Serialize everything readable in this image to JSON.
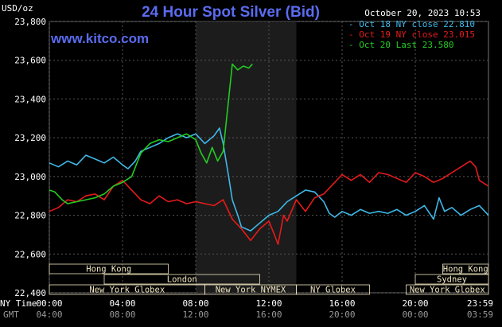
{
  "header": {
    "title": "24 Hour Spot Silver (Bid)",
    "timestamp": "October 20, 2023 10:53",
    "units": "USD/oz",
    "website": "www.kitco.com"
  },
  "legend": [
    {
      "label": "Oct 18 NY close 22.810",
      "color": "#3fb8e8"
    },
    {
      "label": "Oct 19 NY close 23.015",
      "color": "#e51b1b"
    },
    {
      "label": "Oct 20 Last 23.580",
      "color": "#22cc22"
    }
  ],
  "axis_labels": {
    "ny_time": "NY Time",
    "gmt": "GMT"
  },
  "markets": [
    {
      "name": "Hong Kong",
      "start_h": 0,
      "end_h": 6.5,
      "row": 0
    },
    {
      "name": "Hong Kong",
      "start_h": 21.5,
      "end_h": 24,
      "row": 0
    },
    {
      "name": "London",
      "start_h": 3,
      "end_h": 11.5,
      "row": 1
    },
    {
      "name": "Sydney",
      "start_h": 20,
      "end_h": 24,
      "row": 2
    },
    {
      "name": "New York Globex",
      "start_h": 0,
      "end_h": 8.5,
      "row": 3
    },
    {
      "name": "New York NYMEX",
      "start_h": 8.5,
      "end_h": 13.5,
      "row": 3
    },
    {
      "name": "NY Globex",
      "start_h": 13.5,
      "end_h": 17.5,
      "row": 3
    },
    {
      "name": "New York Globex",
      "start_h": 19.5,
      "end_h": 24,
      "row": 3
    }
  ],
  "chart_data": {
    "type": "line",
    "x_unit": "hours NY time",
    "xlim": [
      0,
      24
    ],
    "ylim": [
      22.4,
      23.8
    ],
    "x_ticks": [
      "00:00",
      "04:00",
      "08:00",
      "12:00",
      "16:00",
      "20:00",
      "23:59"
    ],
    "x_ticks_gmt": [
      "04:00",
      "08:00",
      "12:00",
      "16:00",
      "20:00",
      "00:00",
      "03:59"
    ],
    "y_ticks": [
      "22,400",
      "22,600",
      "22,800",
      "23,000",
      "23,200",
      "23,400",
      "23,600",
      "23,800"
    ],
    "y_tick_values": [
      22.4,
      22.6,
      22.8,
      23.0,
      23.2,
      23.4,
      23.6,
      23.8
    ],
    "shaded_region_hours": [
      8.0,
      13.5
    ],
    "grid": true,
    "series": [
      {
        "name": "Oct 18",
        "color": "#3fb8e8",
        "points": [
          [
            0,
            23.07
          ],
          [
            0.5,
            23.05
          ],
          [
            1.0,
            23.08
          ],
          [
            1.5,
            23.06
          ],
          [
            2.0,
            23.11
          ],
          [
            2.5,
            23.09
          ],
          [
            3.0,
            23.07
          ],
          [
            3.5,
            23.1
          ],
          [
            4.0,
            23.06
          ],
          [
            4.3,
            23.04
          ],
          [
            4.7,
            23.08
          ],
          [
            5.0,
            23.13
          ],
          [
            5.5,
            23.15
          ],
          [
            6.0,
            23.17
          ],
          [
            6.5,
            23.2
          ],
          [
            7.0,
            23.22
          ],
          [
            7.5,
            23.2
          ],
          [
            8.0,
            23.22
          ],
          [
            8.5,
            23.17
          ],
          [
            9.0,
            23.21
          ],
          [
            9.3,
            23.25
          ],
          [
            9.5,
            23.17
          ],
          [
            9.8,
            23.0
          ],
          [
            10.0,
            22.88
          ],
          [
            10.3,
            22.8
          ],
          [
            10.5,
            22.74
          ],
          [
            11.0,
            22.72
          ],
          [
            11.5,
            22.76
          ],
          [
            12.0,
            22.8
          ],
          [
            12.5,
            22.82
          ],
          [
            13.0,
            22.87
          ],
          [
            13.5,
            22.9
          ],
          [
            14.0,
            22.93
          ],
          [
            14.5,
            22.92
          ],
          [
            15.0,
            22.87
          ],
          [
            15.3,
            22.81
          ],
          [
            15.6,
            22.79
          ],
          [
            16.0,
            22.82
          ],
          [
            16.5,
            22.8
          ],
          [
            17.0,
            22.83
          ],
          [
            17.5,
            22.81
          ],
          [
            18.0,
            22.82
          ],
          [
            18.5,
            22.81
          ],
          [
            19.0,
            22.83
          ],
          [
            19.5,
            22.8
          ],
          [
            20.0,
            22.82
          ],
          [
            20.5,
            22.85
          ],
          [
            21.0,
            22.78
          ],
          [
            21.3,
            22.89
          ],
          [
            21.6,
            22.82
          ],
          [
            22.0,
            22.84
          ],
          [
            22.5,
            22.8
          ],
          [
            23.0,
            22.83
          ],
          [
            23.5,
            22.85
          ],
          [
            24.0,
            22.8
          ]
        ]
      },
      {
        "name": "Oct 19",
        "color": "#e51b1b",
        "points": [
          [
            0,
            22.82
          ],
          [
            0.5,
            22.84
          ],
          [
            1.0,
            22.88
          ],
          [
            1.5,
            22.87
          ],
          [
            2.0,
            22.9
          ],
          [
            2.5,
            22.91
          ],
          [
            3.0,
            22.88
          ],
          [
            3.5,
            22.95
          ],
          [
            4.0,
            22.98
          ],
          [
            4.5,
            22.93
          ],
          [
            5.0,
            22.88
          ],
          [
            5.5,
            22.86
          ],
          [
            6.0,
            22.9
          ],
          [
            6.5,
            22.87
          ],
          [
            7.0,
            22.88
          ],
          [
            7.5,
            22.86
          ],
          [
            8.0,
            22.87
          ],
          [
            8.5,
            22.86
          ],
          [
            9.0,
            22.85
          ],
          [
            9.5,
            22.88
          ],
          [
            10.0,
            22.78
          ],
          [
            10.5,
            22.73
          ],
          [
            11.0,
            22.67
          ],
          [
            11.5,
            22.73
          ],
          [
            12.0,
            22.77
          ],
          [
            12.3,
            22.7
          ],
          [
            12.5,
            22.65
          ],
          [
            12.8,
            22.8
          ],
          [
            13.0,
            22.77
          ],
          [
            13.5,
            22.88
          ],
          [
            14.0,
            22.82
          ],
          [
            14.5,
            22.89
          ],
          [
            15.0,
            22.91
          ],
          [
            15.5,
            22.96
          ],
          [
            16.0,
            23.01
          ],
          [
            16.5,
            22.98
          ],
          [
            17.0,
            23.01
          ],
          [
            17.5,
            22.97
          ],
          [
            18.0,
            23.02
          ],
          [
            18.5,
            23.01
          ],
          [
            19.0,
            22.99
          ],
          [
            19.5,
            22.97
          ],
          [
            20.0,
            23.02
          ],
          [
            20.5,
            23.0
          ],
          [
            21.0,
            22.97
          ],
          [
            21.5,
            22.99
          ],
          [
            22.0,
            23.02
          ],
          [
            22.5,
            23.05
          ],
          [
            23.0,
            23.08
          ],
          [
            23.3,
            23.05
          ],
          [
            23.5,
            22.98
          ],
          [
            24.0,
            22.95
          ]
        ]
      },
      {
        "name": "Oct 20",
        "color": "#22cc22",
        "points": [
          [
            0,
            22.93
          ],
          [
            0.3,
            22.92
          ],
          [
            0.7,
            22.88
          ],
          [
            1.0,
            22.86
          ],
          [
            1.5,
            22.87
          ],
          [
            2.0,
            22.88
          ],
          [
            2.5,
            22.89
          ],
          [
            3.0,
            22.91
          ],
          [
            3.5,
            22.95
          ],
          [
            4.0,
            22.97
          ],
          [
            4.5,
            23.0
          ],
          [
            5.0,
            23.12
          ],
          [
            5.5,
            23.17
          ],
          [
            6.0,
            23.19
          ],
          [
            6.5,
            23.18
          ],
          [
            7.0,
            23.2
          ],
          [
            7.5,
            23.22
          ],
          [
            8.0,
            23.19
          ],
          [
            8.3,
            23.12
          ],
          [
            8.6,
            23.07
          ],
          [
            8.9,
            23.15
          ],
          [
            9.2,
            23.08
          ],
          [
            9.5,
            23.13
          ],
          [
            9.8,
            23.4
          ],
          [
            10.0,
            23.58
          ],
          [
            10.3,
            23.55
          ],
          [
            10.6,
            23.57
          ],
          [
            10.9,
            23.56
          ],
          [
            11.1,
            23.58
          ]
        ]
      }
    ]
  }
}
